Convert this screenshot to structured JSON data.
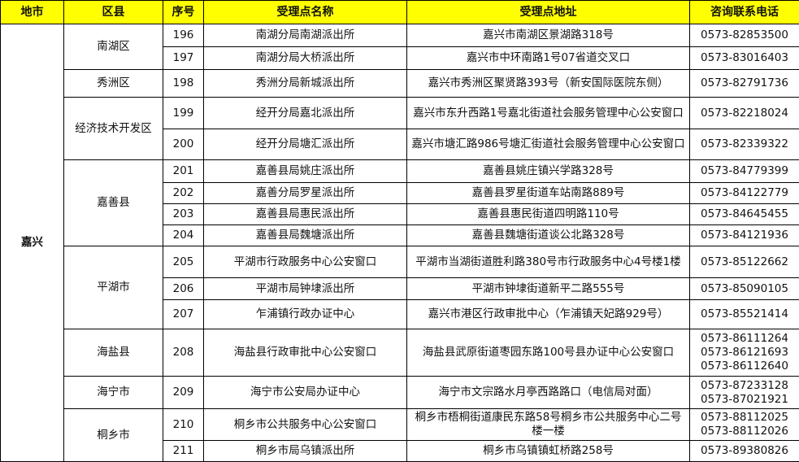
{
  "header": [
    "地市",
    "区县",
    "序号",
    "受理点名称",
    "受理点地址",
    "咨询联系电话"
  ],
  "header_color": "#ffff00",
  "city": "嘉兴",
  "rows": [
    {
      "district": "南湖区",
      "no": "196",
      "name": "南湖分局南湖派出所",
      "address": "嘉兴市南湖区景湖路318号",
      "phones": [
        "0573-82853500"
      ]
    },
    {
      "district": "南湖区",
      "no": "197",
      "name": "南湖分局大桥派出所",
      "address": "嘉兴市中环南路1号07省道交叉口",
      "phones": [
        "0573-83016403"
      ]
    },
    {
      "district": "秀洲区",
      "no": "198",
      "name": "秀洲分局新城派出所",
      "address": "嘉兴市秀洲区聚贤路393号（新安国际医院东侧）",
      "phones": [
        "0573-82791736"
      ]
    },
    {
      "district": "经济技术开发区",
      "no": "199",
      "name": "经开分局嘉北派出所",
      "address": "嘉兴市东升西路1号嘉北街道社会服务管理中心公安窗口",
      "phones": [
        "0573-82218024"
      ]
    },
    {
      "district": "经济技术开发区",
      "no": "200",
      "name": "经开分局塘汇派出所",
      "address": "嘉兴市塘汇路986号塘汇街道社会服务管理中心公安窗口",
      "phones": [
        "0573-82339322"
      ]
    },
    {
      "district": "嘉善县",
      "no": "201",
      "name": "嘉善县局姚庄派出所",
      "address": "嘉善县姚庄镇兴学路328号",
      "phones": [
        "0573-84779399"
      ]
    },
    {
      "district": "嘉善县",
      "no": "202",
      "name": "嘉善分局罗星派出所",
      "address": "嘉善县罗星街道车站南路889号",
      "phones": [
        "0573-84122779"
      ]
    },
    {
      "district": "嘉善县",
      "no": "203",
      "name": "嘉善县局惠民派出所",
      "address": "嘉善县惠民街道四明路110号",
      "phones": [
        "0573-84645455"
      ]
    },
    {
      "district": "嘉善县",
      "no": "204",
      "name": "嘉善县局魏塘派出所",
      "address": "嘉善县魏塘街道谈公北路328号",
      "phones": [
        "0573-84121936"
      ]
    },
    {
      "district": "平湖市",
      "no": "205",
      "name": "平湖市行政服务中心公安窗口",
      "address": "平湖市当湖街道胜利路380号市行政服务中心4号楼1楼",
      "phones": [
        "0573-85122662"
      ]
    },
    {
      "district": "平湖市",
      "no": "206",
      "name": "平湖市局钟埭派出所",
      "address": "平湖市钟埭街道新平二路555号",
      "phones": [
        "0573-85090105"
      ]
    },
    {
      "district": "平湖市",
      "no": "207",
      "name": "乍浦镇行政办证中心",
      "address": "嘉兴市港区行政审批中心（乍浦镇天妃路929号）",
      "phones": [
        "0573-85521414"
      ]
    },
    {
      "district": "海盐县",
      "no": "208",
      "name": "海盐县行政审批中心公安窗口",
      "address": "海盐县武原街道枣园东路100号县办证中心公安窗口",
      "phones": [
        "0573-86111264",
        "0573-86121693",
        "0573-86112640"
      ]
    },
    {
      "district": "海宁市",
      "no": "209",
      "name": "海宁市公安局办证中心",
      "address": "海宁市文宗路水月亭西路路口（电信局对面）",
      "phones": [
        "0573-87233128",
        "0573-87021921"
      ]
    },
    {
      "district": "桐乡市",
      "no": "210",
      "name": "桐乡市公共服务中心公安窗口",
      "address": "桐乡市梧桐街道康民东路58号桐乡市公共服务中心二号楼一楼",
      "phones": [
        "0573-88112025",
        "0573-88112026"
      ]
    },
    {
      "district": "桐乡市",
      "no": "211",
      "name": "桐乡市局乌镇派出所",
      "address": "桐乡市乌镇镇虹桥路258号",
      "phones": [
        "0573-89380826"
      ]
    }
  ]
}
